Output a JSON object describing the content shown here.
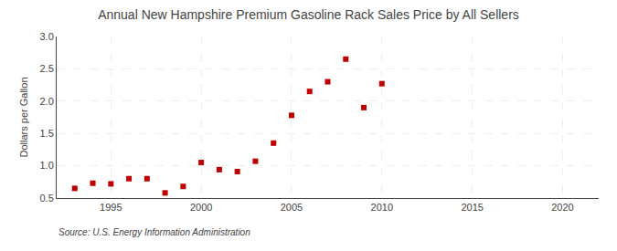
{
  "chart_data": {
    "type": "scatter",
    "title": "Annual New Hampshire Premium Gasoline Rack Sales Price by All Sellers",
    "ylabel": "Dollars per Gallon",
    "source": "Source: U.S. Energy Information Administration",
    "x": [
      1993,
      1994,
      1995,
      1996,
      1997,
      1998,
      1999,
      2000,
      2001,
      2002,
      2003,
      2004,
      2005,
      2006,
      2007,
      2008,
      2009,
      2010
    ],
    "values": [
      0.65,
      0.73,
      0.72,
      0.8,
      0.8,
      0.58,
      0.68,
      1.05,
      0.94,
      0.91,
      1.07,
      1.35,
      1.78,
      2.15,
      2.3,
      2.65,
      1.9,
      2.27
    ],
    "color": "#c00000",
    "marker": "square",
    "xlim": [
      1992,
      2022
    ],
    "xticks": [
      1995,
      2000,
      2005,
      2010,
      2015,
      2020
    ],
    "ylim": [
      0.5,
      3.0
    ],
    "yticks": [
      0.5,
      {
        "value": 1,
        "label": "1.0"
      },
      1.5,
      {
        "value": 2,
        "label": "2.0"
      },
      2.5,
      {
        "value": 3,
        "label": "3.0"
      }
    ],
    "grid": true
  }
}
